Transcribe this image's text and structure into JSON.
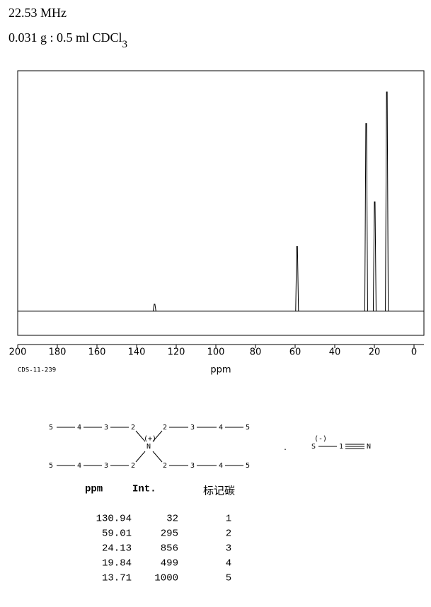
{
  "header": {
    "frequency": "22.53 MHz",
    "sample": "0.031 g : 0.5 ml CDCl",
    "sample_subscript": "3"
  },
  "chart_data": {
    "type": "spectrum",
    "xlabel": "ppm",
    "code": "CDS-11-239",
    "x": [
      130.94,
      59.01,
      24.13,
      19.84,
      13.71
    ],
    "values": [
      32,
      295,
      856,
      499,
      1000
    ],
    "xlim": [
      200,
      -5
    ],
    "xticks": [
      200,
      180,
      160,
      140,
      120,
      100,
      80,
      60,
      40,
      20,
      0
    ],
    "ylim": [
      -110,
      1097
    ],
    "color": "#000000"
  },
  "structure": {
    "rows": [
      [
        "5",
        "4",
        "3",
        "2",
        "2",
        "3",
        "4",
        "5"
      ],
      [
        "5",
        "4",
        "3",
        "2",
        "2",
        "3",
        "4",
        "5"
      ]
    ],
    "center": "N",
    "center_charge": "(+)",
    "separator": ".",
    "anion": [
      "S",
      "1",
      "N"
    ],
    "anion_charge": "(-)"
  },
  "table": {
    "headers": [
      "ppm",
      "Int.",
      "标记碳"
    ],
    "carbons": [
      1,
      2,
      3,
      4,
      5
    ]
  }
}
